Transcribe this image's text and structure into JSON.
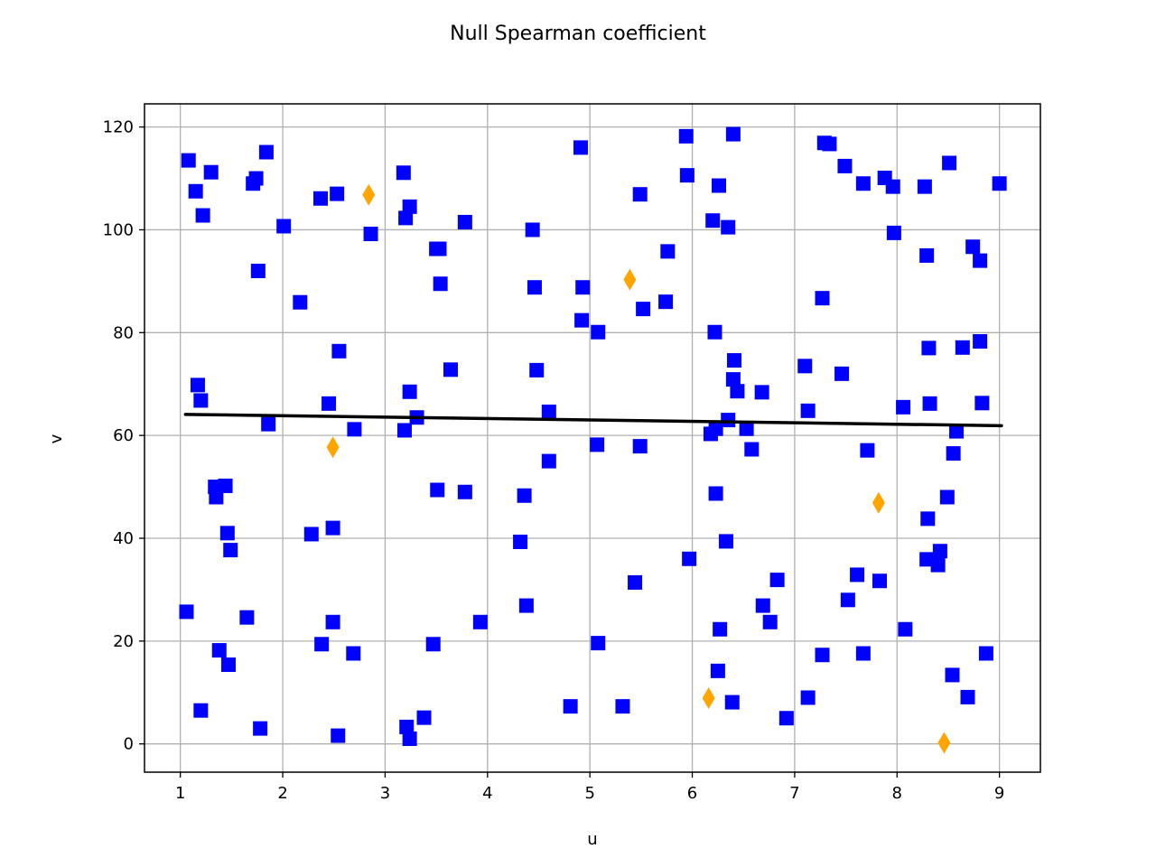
{
  "chart_data": {
    "type": "scatter",
    "title": "Null Spearman coefficient",
    "xlabel": "u",
    "ylabel": "v",
    "xlim": [
      0.65,
      9.4
    ],
    "ylim": [
      -5.5,
      124.5
    ],
    "xticks": [
      1,
      2,
      3,
      4,
      5,
      6,
      7,
      8,
      9
    ],
    "yticks": [
      0,
      20,
      40,
      60,
      80,
      100,
      120
    ],
    "grid": true,
    "colors": {
      "main": "#0000ff",
      "special": "#ffa500",
      "fit": "#000000"
    },
    "series": [
      {
        "marker": "square",
        "color": "#0000ff",
        "points": [
          [
            1.08,
            113.5
          ],
          [
            1.15,
            107.5
          ],
          [
            1.22,
            102.8
          ],
          [
            1.3,
            111.2
          ],
          [
            1.06,
            25.7
          ],
          [
            1.2,
            6.5
          ],
          [
            1.17,
            69.8
          ],
          [
            1.2,
            66.8
          ],
          [
            1.34,
            50
          ],
          [
            1.35,
            48
          ],
          [
            1.44,
            50.2
          ],
          [
            1.46,
            41
          ],
          [
            1.49,
            37.7
          ],
          [
            1.38,
            18.2
          ],
          [
            1.47,
            15.4
          ],
          [
            1.65,
            24.6
          ],
          [
            1.71,
            109
          ],
          [
            1.74,
            110
          ],
          [
            1.76,
            92
          ],
          [
            1.84,
            115.1
          ],
          [
            1.86,
            62.2
          ],
          [
            1.78,
            3
          ],
          [
            2.01,
            100.7
          ],
          [
            2.17,
            85.9
          ],
          [
            2.28,
            40.8
          ],
          [
            2.37,
            106.1
          ],
          [
            2.38,
            19.4
          ],
          [
            2.45,
            66.2
          ],
          [
            2.49,
            42
          ],
          [
            2.49,
            23.7
          ],
          [
            2.53,
            107
          ],
          [
            2.55,
            76.4
          ],
          [
            2.54,
            1.6
          ],
          [
            2.7,
            61.2
          ],
          [
            2.69,
            17.6
          ],
          [
            2.86,
            99.2
          ],
          [
            3.18,
            111.1
          ],
          [
            3.2,
            102.3
          ],
          [
            3.24,
            104.5
          ],
          [
            3.24,
            68.5
          ],
          [
            3.19,
            61
          ],
          [
            3.31,
            63.5
          ],
          [
            3.21,
            3.3
          ],
          [
            3.24,
            1
          ],
          [
            3.38,
            5.1
          ],
          [
            3.47,
            19.4
          ],
          [
            3.5,
            96.3
          ],
          [
            3.53,
            96.3
          ],
          [
            3.54,
            89.5
          ],
          [
            3.51,
            49.4
          ],
          [
            3.64,
            72.8
          ],
          [
            3.78,
            101.5
          ],
          [
            3.78,
            49
          ],
          [
            3.93,
            23.7
          ],
          [
            4.32,
            39.3
          ],
          [
            4.36,
            48.3
          ],
          [
            4.38,
            26.9
          ],
          [
            4.44,
            100
          ],
          [
            4.46,
            88.8
          ],
          [
            4.48,
            72.7
          ],
          [
            4.6,
            64.6
          ],
          [
            4.6,
            55
          ],
          [
            4.81,
            7.3
          ],
          [
            4.91,
            116
          ],
          [
            4.93,
            88.8
          ],
          [
            4.92,
            82.4
          ],
          [
            5.08,
            80.1
          ],
          [
            5.07,
            58.2
          ],
          [
            5.08,
            19.6
          ],
          [
            5.32,
            7.3
          ],
          [
            5.44,
            31.4
          ],
          [
            5.49,
            106.9
          ],
          [
            5.52,
            84.6
          ],
          [
            5.49,
            57.9
          ],
          [
            5.76,
            95.8
          ],
          [
            5.74,
            86
          ],
          [
            5.94,
            118.2
          ],
          [
            5.95,
            110.6
          ],
          [
            5.97,
            36
          ],
          [
            6.2,
            101.8
          ],
          [
            6.22,
            80.1
          ],
          [
            6.18,
            60.3
          ],
          [
            6.23,
            61.3
          ],
          [
            6.23,
            48.7
          ],
          [
            6.26,
            108.6
          ],
          [
            6.25,
            14.2
          ],
          [
            6.27,
            22.3
          ],
          [
            6.33,
            39.4
          ],
          [
            6.35,
            100.5
          ],
          [
            6.35,
            63
          ],
          [
            6.4,
            118.6
          ],
          [
            6.41,
            74.6
          ],
          [
            6.4,
            70.9
          ],
          [
            6.44,
            68.6
          ],
          [
            6.39,
            8.1
          ],
          [
            6.53,
            61.3
          ],
          [
            6.58,
            57.3
          ],
          [
            6.68,
            68.4
          ],
          [
            6.69,
            26.9
          ],
          [
            6.76,
            23.7
          ],
          [
            6.83,
            31.9
          ],
          [
            6.92,
            5
          ],
          [
            7.1,
            73.5
          ],
          [
            7.13,
            64.8
          ],
          [
            7.13,
            9
          ],
          [
            7.27,
            86.7
          ],
          [
            7.27,
            17.3
          ],
          [
            7.29,
            116.9
          ],
          [
            7.34,
            116.7
          ],
          [
            7.46,
            72
          ],
          [
            7.49,
            112.4
          ],
          [
            7.52,
            28
          ],
          [
            7.61,
            32.9
          ],
          [
            7.67,
            109
          ],
          [
            7.67,
            17.6
          ],
          [
            7.71,
            57.1
          ],
          [
            7.83,
            31.7
          ],
          [
            7.88,
            110.1
          ],
          [
            7.96,
            108.4
          ],
          [
            7.97,
            99.4
          ],
          [
            8.06,
            65.5
          ],
          [
            8.08,
            22.3
          ],
          [
            8.27,
            108.4
          ],
          [
            8.29,
            95
          ],
          [
            8.29,
            35.9
          ],
          [
            8.3,
            43.8
          ],
          [
            8.31,
            77
          ],
          [
            8.32,
            66.2
          ],
          [
            8.4,
            34.8
          ],
          [
            8.42,
            37.5
          ],
          [
            8.49,
            48
          ],
          [
            8.51,
            113
          ],
          [
            8.54,
            13.4
          ],
          [
            8.55,
            56.5
          ],
          [
            8.58,
            60.8
          ],
          [
            8.64,
            77.1
          ],
          [
            8.69,
            9.1
          ],
          [
            8.74,
            96.7
          ],
          [
            8.81,
            94
          ],
          [
            8.81,
            78.3
          ],
          [
            8.83,
            66.3
          ],
          [
            8.87,
            17.6
          ],
          [
            9,
            109
          ]
        ]
      },
      {
        "marker": "diamond",
        "color": "#ffa500",
        "points": [
          [
            2.84,
            106.8
          ],
          [
            2.49,
            57.7
          ],
          [
            5.39,
            90.3
          ],
          [
            6.16,
            8.9
          ],
          [
            7.82,
            46.9
          ],
          [
            8.46,
            0.2
          ]
        ]
      }
    ],
    "fit_line": {
      "color": "#000000",
      "points": [
        [
          1.05,
          64.1
        ],
        [
          9.02,
          61.9
        ]
      ]
    }
  }
}
